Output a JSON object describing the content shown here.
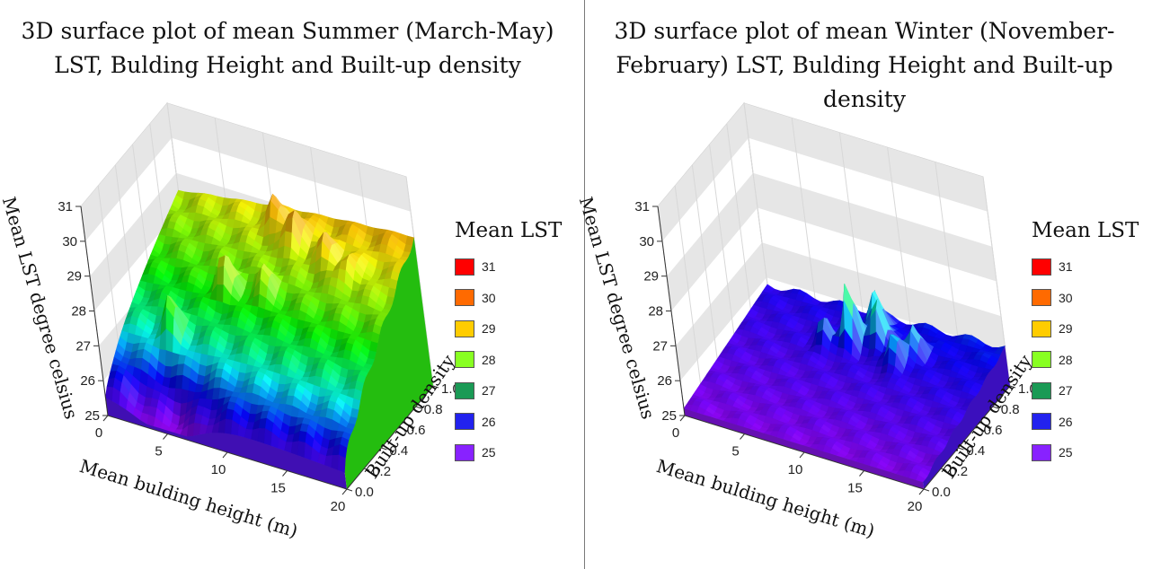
{
  "chart_data": [
    {
      "type": "surface3d",
      "title": "3D surface plot of mean Summer (March-May) LST, Bulding Height and Built-up density",
      "xlabel": "Mean bulding height (m)",
      "ylabel": "Built-up density",
      "zlabel": "Mean LST degree celsius",
      "xlim": [
        0,
        20
      ],
      "ylim": [
        0.0,
        1.0
      ],
      "zlim": [
        25,
        31
      ],
      "x_ticks": [
        "0",
        "5",
        "10",
        "15",
        "20"
      ],
      "y_ticks": [
        "0.0",
        "0.2",
        "0.4",
        "0.6",
        "0.8",
        "1.0"
      ],
      "z_ticks": [
        "25",
        "26",
        "27",
        "28",
        "29",
        "30",
        "31"
      ],
      "legend": {
        "title": "Mean LST",
        "placement": "right",
        "entries": [
          {
            "label": "31",
            "color": "#ff0000"
          },
          {
            "label": "30",
            "color": "#ff6a00"
          },
          {
            "label": "29",
            "color": "#ffcc00"
          },
          {
            "label": "28",
            "color": "#88ff22"
          },
          {
            "label": "27",
            "color": "#1a9a55"
          },
          {
            "label": "26",
            "color": "#2222ee"
          },
          {
            "label": "25",
            "color": "#8822ff"
          }
        ]
      },
      "surface_summary": {
        "min_lst": 25.2,
        "max_lst": 30.9,
        "typical_low_height": 26.3,
        "typical_high_density": 29.5
      }
    },
    {
      "type": "surface3d",
      "title": "3D surface plot of mean Winter (November-February) LST, Bulding Height and Built-up density",
      "xlabel": "Mean bulding height (m)",
      "ylabel": "Built-up density",
      "zlabel": "Mean LST degree celsius",
      "xlim": [
        0,
        20
      ],
      "ylim": [
        0.0,
        1.0
      ],
      "zlim": [
        25,
        31
      ],
      "x_ticks": [
        "0",
        "5",
        "10",
        "15",
        "20"
      ],
      "y_ticks": [
        "0.0",
        "0.2",
        "0.4",
        "0.6",
        "0.8",
        "1.0"
      ],
      "z_ticks": [
        "25",
        "26",
        "27",
        "28",
        "29",
        "30",
        "31"
      ],
      "legend": {
        "title": "Mean LST",
        "placement": "right",
        "entries": [
          {
            "label": "31",
            "color": "#ff0000"
          },
          {
            "label": "30",
            "color": "#ff6a00"
          },
          {
            "label": "29",
            "color": "#ffcc00"
          },
          {
            "label": "28",
            "color": "#88ff22"
          },
          {
            "label": "27",
            "color": "#1a9a55"
          },
          {
            "label": "26",
            "color": "#2222ee"
          },
          {
            "label": "25",
            "color": "#8822ff"
          }
        ]
      },
      "surface_summary": {
        "min_lst": 25.0,
        "max_lst": 28.0,
        "typical_low_height": 25.3,
        "typical_high_density": 26.2
      }
    }
  ]
}
